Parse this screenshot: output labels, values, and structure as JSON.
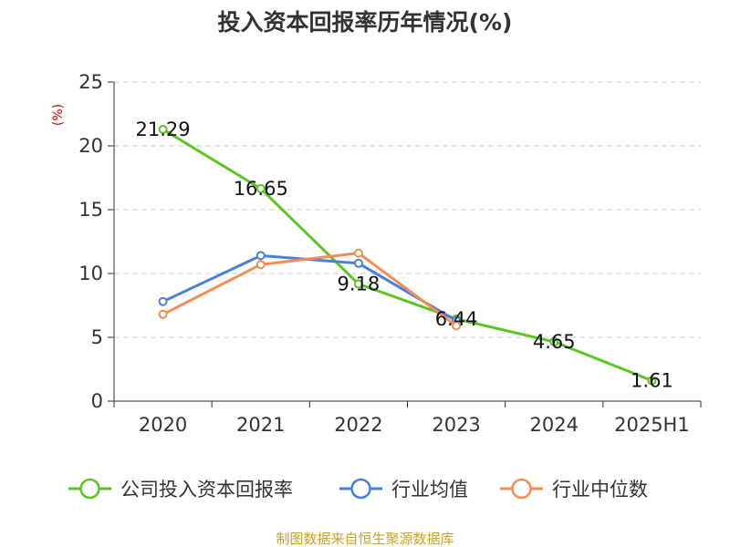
{
  "chart_data": {
    "type": "line",
    "title": "投入资本回报率历年情况(%)",
    "ylabel": "(%)",
    "xlabel": "",
    "categories": [
      "2020",
      "2021",
      "2022",
      "2023",
      "2024",
      "2025H1"
    ],
    "ylim": [
      0,
      25
    ],
    "yticks": [
      0,
      5,
      10,
      15,
      20,
      25
    ],
    "grid": true,
    "legend_position": "bottom",
    "series": [
      {
        "name": "公司投入资本回报率",
        "color": "#5ec324",
        "values": [
          21.29,
          16.65,
          9.18,
          6.44,
          4.65,
          1.61
        ],
        "labels": true
      },
      {
        "name": "行业均值",
        "color": "#4a7fdb",
        "values": [
          7.8,
          11.4,
          10.8,
          6.3,
          null,
          null
        ],
        "labels": false
      },
      {
        "name": "行业中位数",
        "color": "#f58c57",
        "values": [
          6.8,
          10.7,
          11.6,
          5.9,
          null,
          null
        ],
        "labels": false
      }
    ],
    "data_labels": [
      "21.29",
      "16.65",
      "9.18",
      "6.44",
      "4.65",
      "1.61"
    ]
  },
  "source": "制图数据来自恒生聚源数据库",
  "colors": {
    "ylabel": "#cc0000",
    "source": "#c9a227",
    "grid": "#cccccc",
    "axis": "#333333"
  }
}
